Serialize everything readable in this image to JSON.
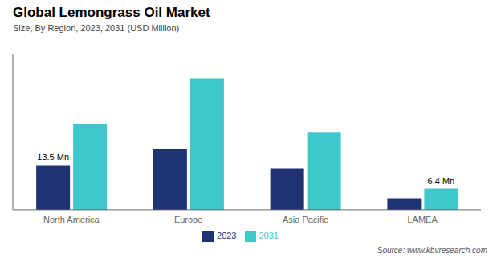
{
  "chart_data": {
    "type": "bar",
    "title": "Global Lemongrass Oil Market",
    "subtitle": "Size, By Region, 2023, 2031 (USD Million)",
    "categories": [
      "North America",
      "Europe",
      "Asia Pacific",
      "LAMEA"
    ],
    "series": [
      {
        "name": "2023",
        "color": "#1e3274",
        "values": [
          13.5,
          18.5,
          12.5,
          3.5
        ]
      },
      {
        "name": "2031",
        "color": "#3ec8cc",
        "values": [
          26.0,
          40.0,
          23.5,
          6.4
        ]
      }
    ],
    "ylim": [
      0,
      47.2
    ],
    "tick_labels": "x",
    "grid": false,
    "legend": "bottom",
    "annotations": [
      {
        "text": "13.5 Mn",
        "category": "North America",
        "series": "2023"
      },
      {
        "text": "6.4 Mn",
        "category": "LAMEA",
        "series": "2031"
      }
    ],
    "source": "Source: www.kbvresearch.com"
  }
}
